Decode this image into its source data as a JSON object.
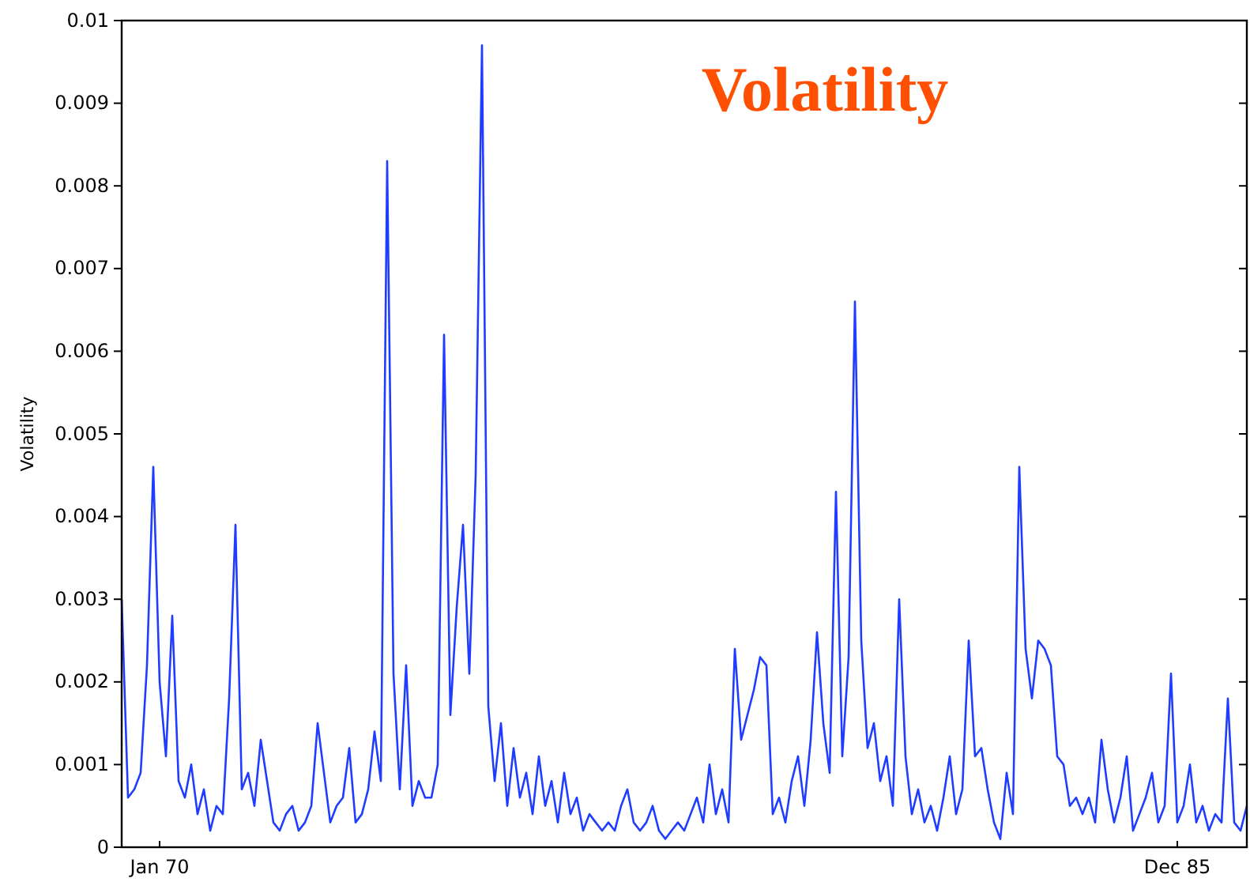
{
  "chart_data": {
    "type": "line",
    "title": "Volatility",
    "ylabel": "Volatility",
    "categories": [
      null,
      null,
      null,
      null,
      null,
      null,
      "Jan 70",
      null,
      null,
      null,
      null,
      null,
      null,
      null,
      null,
      null,
      null,
      null,
      null,
      null,
      null,
      null,
      null,
      null,
      null,
      null,
      null,
      null,
      null,
      null,
      null,
      null,
      null,
      null,
      null,
      null,
      null,
      null,
      null,
      null,
      null,
      null,
      null,
      null,
      null,
      null,
      null,
      null,
      null,
      null,
      null,
      null,
      null,
      null,
      null,
      null,
      null,
      null,
      null,
      null,
      null,
      null,
      null,
      null,
      null,
      null,
      null,
      null,
      null,
      null,
      null,
      null,
      null,
      null,
      null,
      null,
      null,
      null,
      null,
      null,
      null,
      null,
      null,
      null,
      null,
      null,
      null,
      null,
      null,
      null,
      null,
      null,
      null,
      null,
      null,
      null,
      null,
      null,
      null,
      null,
      null,
      null,
      null,
      null,
      null,
      null,
      null,
      null,
      null,
      null,
      null,
      null,
      null,
      null,
      null,
      null,
      null,
      null,
      null,
      null,
      null,
      null,
      null,
      null,
      null,
      null,
      null,
      null,
      null,
      null,
      null,
      null,
      null,
      null,
      null,
      null,
      null,
      null,
      null,
      null,
      null,
      null,
      null,
      null,
      null,
      null,
      null,
      null,
      null,
      null,
      null,
      null,
      null,
      null,
      null,
      null,
      null,
      null,
      null,
      null,
      null,
      null,
      null,
      null,
      null,
      null,
      null,
      "Dec 85",
      null,
      null,
      null,
      null,
      null,
      null,
      null,
      null,
      null,
      null,
      null
    ],
    "ylim": [
      0,
      0.01
    ],
    "yticks": [
      0,
      0.001,
      0.002,
      0.003,
      0.004,
      0.005,
      0.006,
      0.007,
      0.008,
      0.009,
      0.01
    ],
    "grid": false,
    "marker": "none",
    "line_style": "solid",
    "series": [
      {
        "color": "#1f3dff",
        "values": [
          0.003,
          0.0006,
          0.0007,
          0.0009,
          0.0022,
          0.0046,
          0.002,
          0.0011,
          0.0028,
          0.0008,
          0.0006,
          0.001,
          0.0004,
          0.0007,
          0.0002,
          0.0005,
          0.0004,
          0.0018,
          0.0039,
          0.0007,
          0.0009,
          0.0005,
          0.0013,
          0.0008,
          0.0003,
          0.0002,
          0.0004,
          0.0005,
          0.0002,
          0.0003,
          0.0005,
          0.0015,
          0.0009,
          0.0003,
          0.0005,
          0.0006,
          0.0012,
          0.0003,
          0.0004,
          0.0007,
          0.0014,
          0.0008,
          0.0083,
          0.0021,
          0.0007,
          0.0022,
          0.0005,
          0.0008,
          0.0006,
          0.0006,
          0.001,
          0.0062,
          0.0016,
          0.0029,
          0.0039,
          0.0021,
          0.0045,
          0.0097,
          0.0017,
          0.0008,
          0.0015,
          0.0005,
          0.0012,
          0.0006,
          0.0009,
          0.0004,
          0.0011,
          0.0005,
          0.0008,
          0.0003,
          0.0009,
          0.0004,
          0.0006,
          0.0002,
          0.0004,
          0.0003,
          0.0002,
          0.0003,
          0.0002,
          0.0005,
          0.0007,
          0.0003,
          0.0002,
          0.0003,
          0.0005,
          0.0002,
          0.0001,
          0.0002,
          0.0003,
          0.0002,
          0.0004,
          0.0006,
          0.0003,
          0.001,
          0.0004,
          0.0007,
          0.0003,
          0.0024,
          0.0013,
          0.0016,
          0.0019,
          0.0023,
          0.0022,
          0.0004,
          0.0006,
          0.0003,
          0.0008,
          0.0011,
          0.0005,
          0.0013,
          0.0026,
          0.0015,
          0.0009,
          0.0043,
          0.0011,
          0.0023,
          0.0066,
          0.0025,
          0.0012,
          0.0015,
          0.0008,
          0.0011,
          0.0005,
          0.003,
          0.0011,
          0.0004,
          0.0007,
          0.0003,
          0.0005,
          0.0002,
          0.0006,
          0.0011,
          0.0004,
          0.0007,
          0.0025,
          0.0011,
          0.0012,
          0.0007,
          0.0003,
          0.0001,
          0.0009,
          0.0004,
          0.0046,
          0.0024,
          0.0018,
          0.0025,
          0.0024,
          0.0022,
          0.0011,
          0.001,
          0.0005,
          0.0006,
          0.0004,
          0.0006,
          0.0003,
          0.0013,
          0.0007,
          0.0003,
          0.0006,
          0.0011,
          0.0002,
          0.0004,
          0.0006,
          0.0009,
          0.0003,
          0.0005,
          0.0021,
          0.0003,
          0.0005,
          0.001,
          0.0003,
          0.0005,
          0.0002,
          0.0004,
          0.0003,
          0.0018,
          0.0003,
          0.0002,
          0.0005
        ]
      }
    ]
  }
}
